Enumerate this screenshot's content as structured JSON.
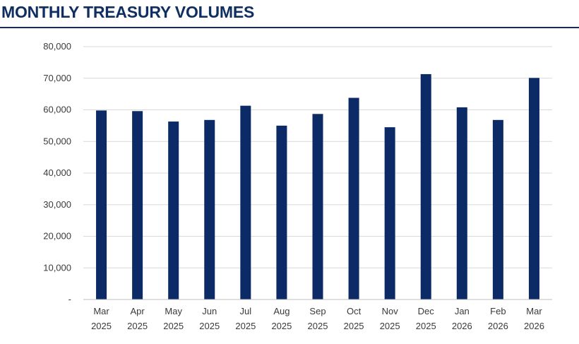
{
  "page": {
    "title": "MONTHLY TREASURY VOLUMES"
  },
  "colors": {
    "bar": "#0b2a66",
    "grid": "#d9d9d9",
    "title": "#0f2f63"
  },
  "chart_data": {
    "type": "bar",
    "title": "MONTHLY TREASURY VOLUMES",
    "xlabel": "",
    "ylabel": "",
    "ylim": [
      0,
      80000
    ],
    "grid": true,
    "legend": "none",
    "yticks": [
      0,
      10000,
      20000,
      30000,
      40000,
      50000,
      60000,
      70000,
      80000
    ],
    "ytick_labels": [
      "-",
      "10,000",
      "20,000",
      "30,000",
      "40,000",
      "50,000",
      "60,000",
      "70,000",
      "80,000"
    ],
    "categories": [
      [
        "Mar",
        "2025"
      ],
      [
        "Apr",
        "2025"
      ],
      [
        "May",
        "2025"
      ],
      [
        "Jun",
        "2025"
      ],
      [
        "Jul",
        "2025"
      ],
      [
        "Aug",
        "2025"
      ],
      [
        "Sep",
        "2025"
      ],
      [
        "Oct",
        "2025"
      ],
      [
        "Nov",
        "2025"
      ],
      [
        "Dec",
        "2025"
      ],
      [
        "Jan",
        "2026"
      ],
      [
        "Feb",
        "2026"
      ],
      [
        "Mar",
        "2026"
      ]
    ],
    "values": [
      59800,
      59600,
      56300,
      56800,
      61300,
      55000,
      58700,
      63800,
      54500,
      71300,
      60800,
      56800,
      70100
    ]
  }
}
